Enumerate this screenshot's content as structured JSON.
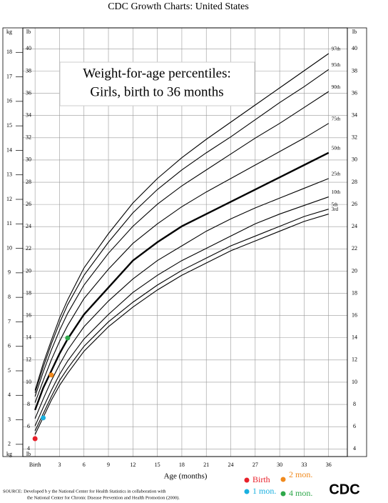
{
  "chart_data": {
    "type": "line",
    "title": "CDC Growth Charts: United States",
    "annotation": [
      "Weight-for-age percentiles:",
      "Girls, birth to 36 months"
    ],
    "x_label": "Age (months)",
    "y_unit": "kg",
    "y2_unit": "lb",
    "x": [
      0,
      1,
      2,
      3,
      4,
      6,
      9,
      12,
      15,
      18,
      21,
      24,
      27,
      30,
      33,
      36
    ],
    "xlim": [
      -1.5,
      38.3
    ],
    "xticks": [
      {
        "value": 0,
        "label": "Birth"
      },
      3,
      6,
      9,
      12,
      15,
      18,
      21,
      24,
      27,
      30,
      33,
      36
    ],
    "ylim": [
      1.5,
      19
    ],
    "yticks": [
      2,
      3,
      4,
      5,
      6,
      7,
      8,
      9,
      10,
      11,
      12,
      13,
      14,
      15,
      16,
      17,
      18
    ],
    "y2lim": [
      3.31,
      41.89
    ],
    "y2ticks": [
      4,
      6,
      8,
      10,
      12,
      14,
      16,
      18,
      20,
      22,
      24,
      26,
      28,
      30,
      32,
      34,
      36,
      38,
      40
    ],
    "grid": true,
    "series": [
      {
        "name": "3rd",
        "color": "#000000",
        "values": [
          2.4,
          3.1,
          3.8,
          4.4,
          4.9,
          5.8,
          6.8,
          7.6,
          8.3,
          8.9,
          9.4,
          9.9,
          10.3,
          10.7,
          11.1,
          11.4
        ]
      },
      {
        "name": "5th",
        "color": "#000000",
        "values": [
          2.55,
          3.25,
          3.95,
          4.6,
          5.1,
          6.0,
          7.0,
          7.8,
          8.5,
          9.1,
          9.6,
          10.1,
          10.5,
          10.9,
          11.3,
          11.6
        ]
      },
      {
        "name": "10th",
        "color": "#000000",
        "values": [
          2.75,
          3.5,
          4.2,
          4.85,
          5.4,
          6.3,
          7.3,
          8.2,
          8.9,
          9.5,
          10.0,
          10.5,
          11.0,
          11.4,
          11.75,
          12.1
        ]
      },
      {
        "name": "25th",
        "color": "#000000",
        "values": [
          3.05,
          3.85,
          4.6,
          5.25,
          5.85,
          6.8,
          7.85,
          8.75,
          9.5,
          10.1,
          10.7,
          11.2,
          11.65,
          12.05,
          12.45,
          12.85
        ]
      },
      {
        "name": "50th",
        "color": "#000000",
        "bold": true,
        "values": [
          3.4,
          4.3,
          5.0,
          5.7,
          6.3,
          7.3,
          8.4,
          9.5,
          10.25,
          10.9,
          11.4,
          11.9,
          12.4,
          12.9,
          13.4,
          13.9
        ]
      },
      {
        "name": "75th",
        "color": "#000000",
        "values": [
          3.7,
          4.6,
          5.45,
          6.2,
          6.85,
          7.95,
          9.15,
          10.2,
          11.0,
          11.7,
          12.3,
          12.85,
          13.4,
          13.95,
          14.5,
          15.1
        ]
      },
      {
        "name": "90th",
        "color": "#000000",
        "values": [
          3.95,
          4.95,
          5.85,
          6.65,
          7.35,
          8.5,
          9.8,
          10.9,
          11.8,
          12.55,
          13.2,
          13.85,
          14.5,
          15.1,
          15.75,
          16.4
        ]
      },
      {
        "name": "95th",
        "color": "#000000",
        "values": [
          4.1,
          5.15,
          6.1,
          6.95,
          7.7,
          8.9,
          10.25,
          11.45,
          12.4,
          13.2,
          13.9,
          14.55,
          15.25,
          15.95,
          16.6,
          17.3
        ]
      },
      {
        "name": "97th",
        "color": "#000000",
        "values": [
          4.2,
          5.3,
          6.25,
          7.15,
          7.9,
          9.2,
          10.6,
          11.85,
          12.85,
          13.7,
          14.45,
          15.15,
          15.85,
          16.55,
          17.25,
          17.95
        ]
      }
    ],
    "points": [
      {
        "name": "Birth",
        "color": "#e8202a",
        "x": 0,
        "y": 2.23
      },
      {
        "name": "1 mon.",
        "color": "#1ab0e0",
        "x": 1,
        "y": 3.08
      },
      {
        "name": "2 mon.",
        "color": "#f08a1e",
        "x": 2,
        "y": 4.83
      },
      {
        "name": "4 mon.",
        "color": "#2ea84a",
        "x": 4,
        "y": 6.34
      }
    ]
  },
  "source": [
    "SOURCE: Developed b y the National Center for Health Statistics in collaboration with",
    "the National Center for Chronic Disease Prevention and Health Promotion (2000)."
  ],
  "logo": "CDC"
}
